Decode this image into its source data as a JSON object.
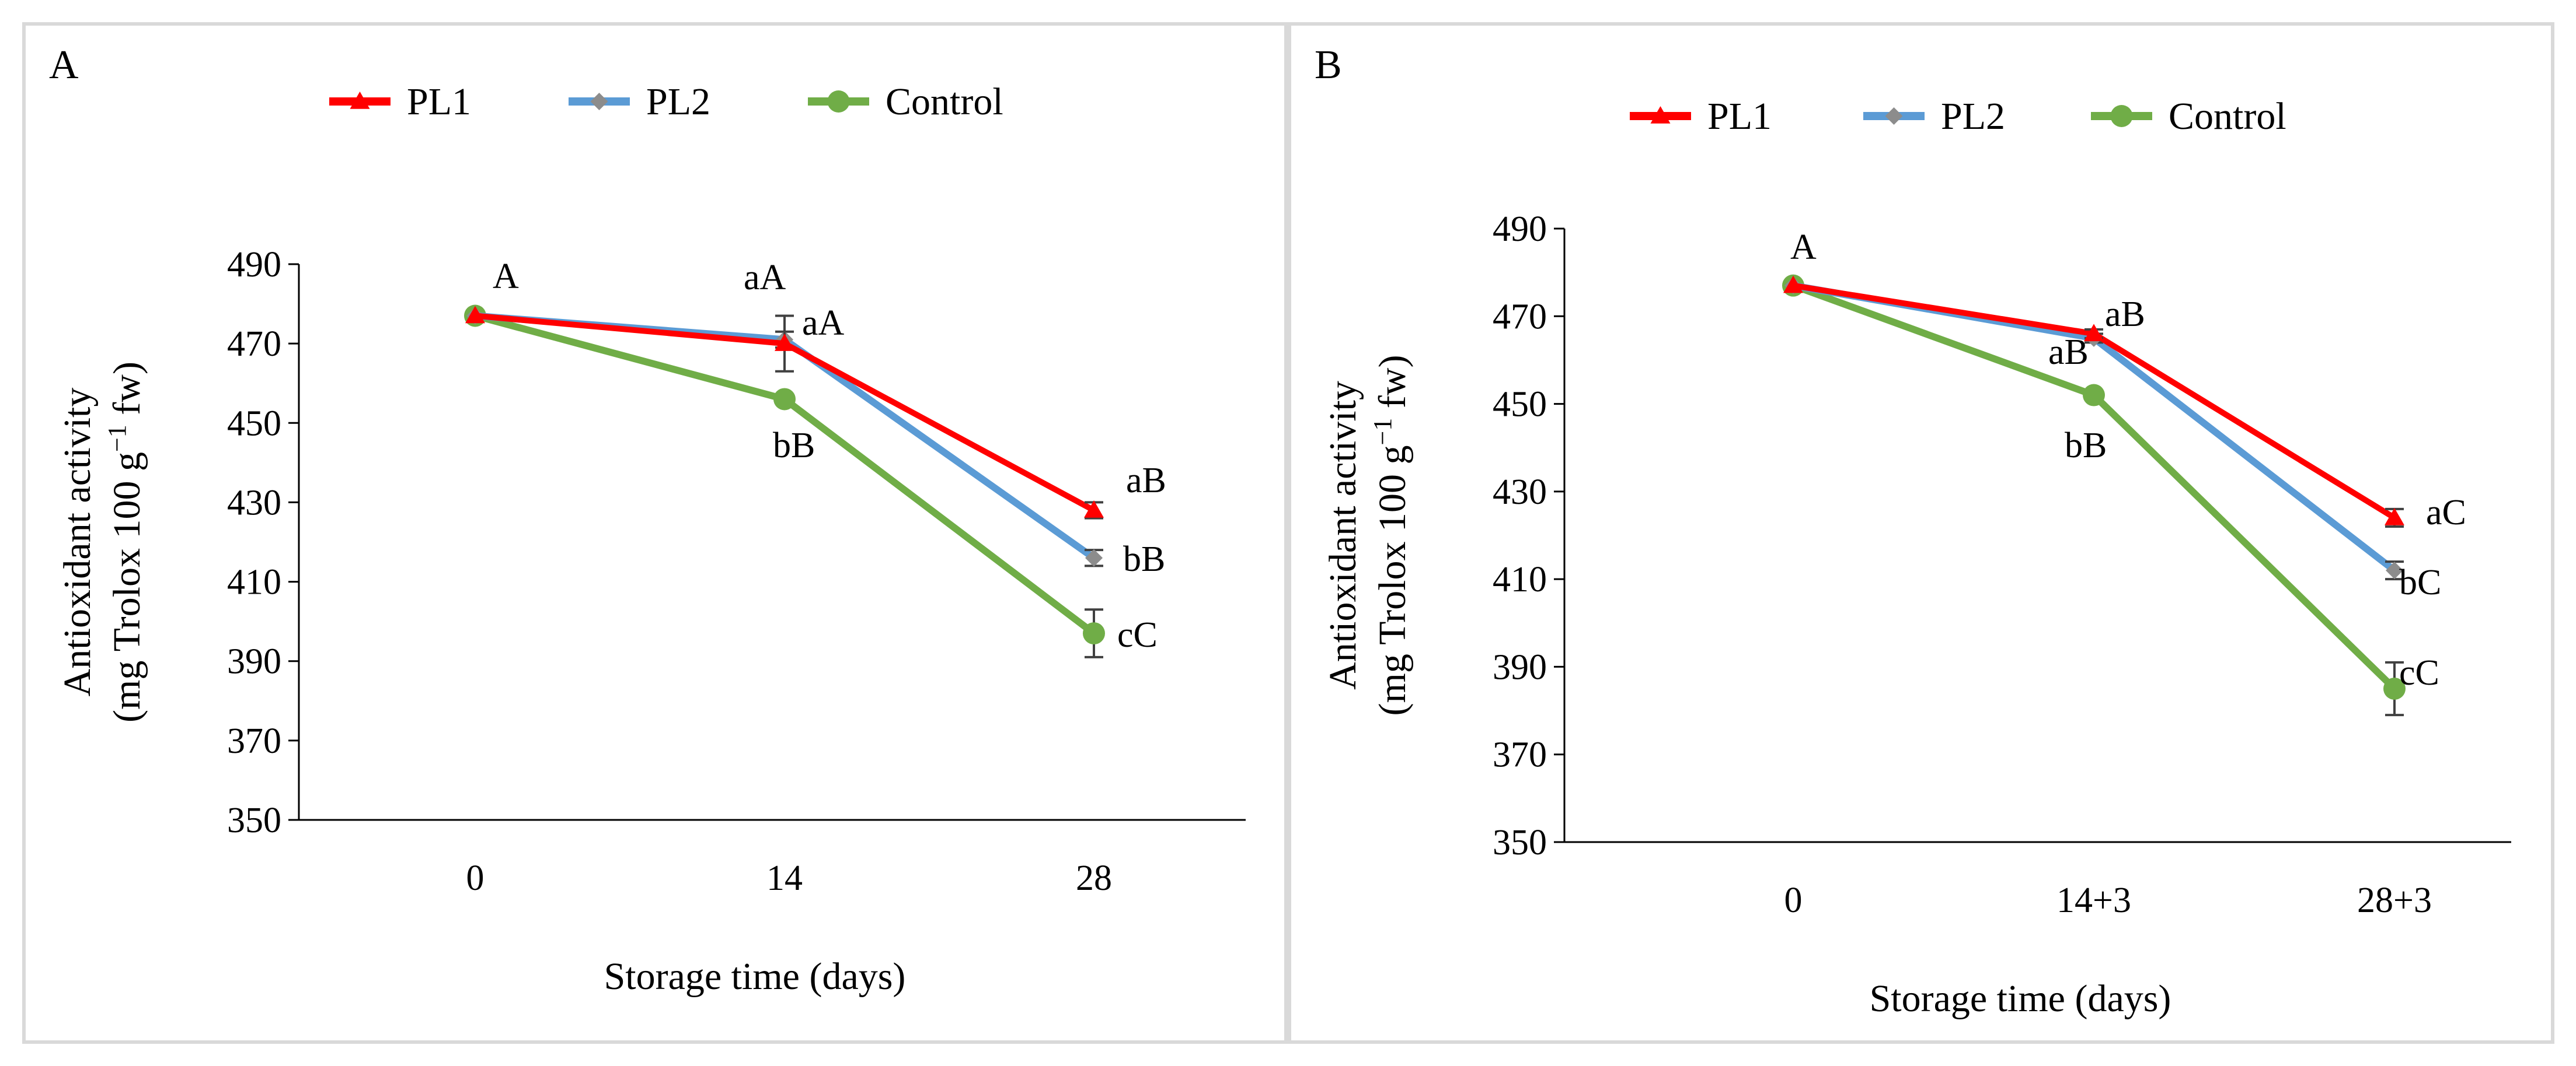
{
  "chart_data": [
    {
      "panel_label": "A",
      "type": "line",
      "title": "",
      "xlabel": "Storage time (days)",
      "ylabel_line1": "Antioxidant  activity",
      "ylabel_line2_prefix": "(mg Trolox 100 g",
      "ylabel_sup": "−1",
      "ylabel_line2_suffix": " fw)",
      "categories": [
        "0",
        "14",
        "28"
      ],
      "ylim": [
        350,
        490
      ],
      "yticks": [
        350,
        370,
        390,
        410,
        430,
        450,
        470,
        490
      ],
      "ytick_labels": [
        "350",
        "370",
        "390",
        "410",
        "430",
        "450",
        "470",
        "490"
      ],
      "legend_position": "top",
      "series": [
        {
          "name": "PL1",
          "color": "#ff0000",
          "marker": "triangle",
          "values": [
            477,
            470,
            428
          ],
          "errors": [
            0,
            7,
            2
          ],
          "labels": [
            "",
            "aA",
            "aB"
          ]
        },
        {
          "name": "PL2",
          "color": "#5b9bd5",
          "marker": "diamond",
          "values": [
            477,
            471,
            416
          ],
          "errors": [
            0,
            2,
            2
          ],
          "labels": [
            "",
            "aA",
            "bB"
          ]
        },
        {
          "name": "Control",
          "color": "#70ad47",
          "marker": "circle",
          "values": [
            477,
            456,
            397
          ],
          "errors": [
            0,
            1,
            6
          ],
          "labels": [
            "A",
            "bB",
            "cC"
          ]
        }
      ]
    },
    {
      "panel_label": "B",
      "type": "line",
      "title": "",
      "xlabel": "Storage time (days)",
      "ylabel_line1": "Antioxidant  activity",
      "ylabel_line2_prefix": "(mg Trolox 100 g",
      "ylabel_sup": "−1",
      "ylabel_line2_suffix": " fw)",
      "categories": [
        "0",
        "14+3",
        "28+3"
      ],
      "ylim": [
        350,
        490
      ],
      "yticks": [
        350,
        370,
        390,
        410,
        430,
        450,
        470,
        490
      ],
      "ytick_labels": [
        "350",
        "370",
        "390",
        "410",
        "430",
        "450",
        "470",
        "490"
      ],
      "legend_position": "top",
      "series": [
        {
          "name": "PL1",
          "color": "#ff0000",
          "marker": "triangle",
          "values": [
            477,
            466,
            424
          ],
          "errors": [
            0,
            1,
            2
          ],
          "labels": [
            "",
            "aB",
            "aC"
          ]
        },
        {
          "name": "PL2",
          "color": "#5b9bd5",
          "marker": "diamond",
          "values": [
            477,
            465,
            412
          ],
          "errors": [
            0,
            1,
            2
          ],
          "labels": [
            "",
            "aB",
            "bC"
          ]
        },
        {
          "name": "Control",
          "color": "#70ad47",
          "marker": "circle",
          "values": [
            477,
            452,
            385
          ],
          "errors": [
            0,
            1,
            6
          ],
          "labels": [
            "A",
            "bB",
            "cC"
          ]
        }
      ]
    }
  ]
}
